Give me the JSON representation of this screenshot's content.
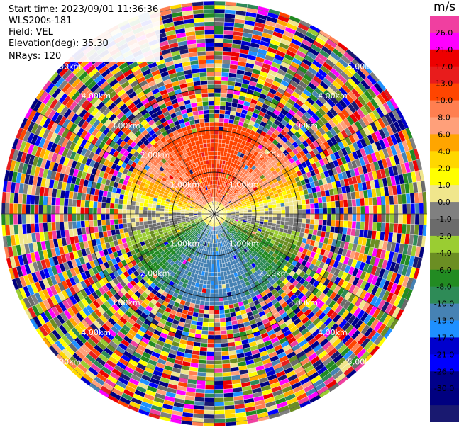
{
  "info": {
    "start_time": "Start time: 2023/09/01 11:36:36",
    "instrument": "WLS200s-181",
    "field": "Field: VEL",
    "elevation": "Elevation(deg): 35.30",
    "nrays": "NRays: 120"
  },
  "colorbar": {
    "unit": "m/s",
    "ticks": [
      "26.0",
      "21.0",
      "17.0",
      "13.0",
      "10.0",
      "8.0",
      "6.0",
      "4.0",
      "2.0",
      "1.0",
      "0.0",
      "-1.0",
      "-2.0",
      "-4.0",
      "-6.0",
      "-8.0",
      "-10.0",
      "-13.0",
      "-17.0",
      "-21.0",
      "-26.0",
      "-30.0"
    ],
    "colors": [
      "#f03fa0",
      "#ff00ff",
      "#ee0000",
      "#e81c1c",
      "#ff4500",
      "#ff7f50",
      "#ffa07a",
      "#ffa500",
      "#ffd700",
      "#ffff00",
      "#f0e68c",
      "#808080",
      "#6b6b6b",
      "#9acd32",
      "#6b8e23",
      "#228b22",
      "#2e8b57",
      "#4682b4",
      "#1e90ff",
      "#0000cd",
      "#0000ff",
      "#00008b",
      "#000080",
      "#191970"
    ]
  },
  "chart_data": {
    "type": "heatmap",
    "projection": "polar (PPI)",
    "field": "VEL",
    "units": "m/s",
    "elevation_deg": 35.3,
    "n_rays": 120,
    "range_rings_km": [
      1.0,
      2.0,
      3.0,
      4.0,
      5.0
    ],
    "ring_labels": [
      "1.00km",
      "2.00km",
      "3.00km",
      "4.00km",
      "5.00km"
    ],
    "azimuth_spokes_deg": [
      0,
      30,
      60,
      90,
      120,
      150,
      180,
      210,
      240,
      270,
      300,
      330
    ],
    "valid_range_km": 2.2,
    "velocity_pattern": {
      "north_sector": [
        10.0,
        13.0,
        8.0,
        6.0
      ],
      "near_center_ring": [
        2.0,
        0.0
      ],
      "west_band": [
        -1.0,
        -4.0
      ],
      "south_sector": [
        -8.0,
        -10.0,
        -6.0
      ],
      "beyond_valid_range": "noise (random values)"
    }
  }
}
